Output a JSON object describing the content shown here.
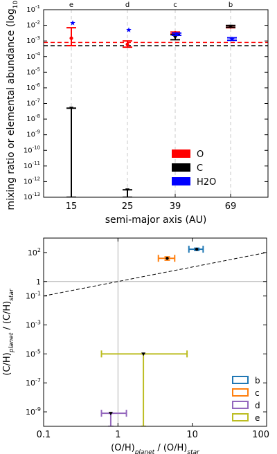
{
  "chart_data": [
    {
      "type": "scatter",
      "xlabel": "semi-major axis (AU)",
      "ylabel": "mixing ratio or elemental abundance",
      "ylabel_unit": "(log",
      "ylabel_unit_sub": "10",
      "ylabel_unit_end": ")",
      "yscale": "log",
      "ylim_exp": [
        -13,
        -1
      ],
      "categories": [
        "15",
        "25",
        "39",
        "69"
      ],
      "top_labels": [
        "e",
        "d",
        "c",
        "b"
      ],
      "y_tick_labels": [
        "10-1",
        "10-2",
        "10-3",
        "10-4",
        "10-5",
        "10-6",
        "10-7",
        "10-8",
        "10-9",
        "10-10",
        "10-11",
        "10-12",
        "10-13"
      ],
      "grid": "vertical dashed at categories",
      "legend_position": "lower-right",
      "hlines": [
        {
          "y": 0.0008,
          "color": "#ff0000",
          "style": "dashed"
        },
        {
          "y": 0.0005,
          "color": "#000000",
          "style": "dashed"
        }
      ],
      "series": [
        {
          "name": "O",
          "color": "#ff0000",
          "points": [
            {
              "x": "15",
              "y": 0.0015,
              "ylo": 0.0005,
              "yhi": 0.007
            },
            {
              "x": "25",
              "y": 0.0006,
              "ylo": 0.0004,
              "yhi": 0.001
            },
            {
              "x": "39",
              "y": 0.0033,
              "ylo": 0.0028,
              "yhi": 0.0037
            },
            {
              "x": "69",
              "y": 0.008,
              "ylo": 0.007,
              "yhi": 0.0095
            }
          ]
        },
        {
          "name": "C",
          "color": "#000000",
          "points": [
            {
              "x": "15",
              "y": 5e-08,
              "ylo": 1e-13,
              "yhi": 5e-08
            },
            {
              "x": "25",
              "y": 3e-13,
              "ylo": 1e-13,
              "yhi": 3e-13
            },
            {
              "x": "39",
              "y": 0.0017,
              "ylo": 0.0012,
              "yhi": 0.0025
            },
            {
              "x": "69",
              "y": 0.0088,
              "ylo": 0.0075,
              "yhi": 0.0098
            }
          ]
        },
        {
          "name": "H2O",
          "color": "#0000ff",
          "points": [
            {
              "x": "15",
              "y": 0.014
            },
            {
              "x": "25",
              "y": 0.005
            },
            {
              "x": "39",
              "y": 0.0027,
              "ylo": 0.0023,
              "yhi": 0.0032
            },
            {
              "x": "69",
              "y": 0.0013,
              "ylo": 0.0011,
              "yhi": 0.0016
            }
          ]
        }
      ]
    },
    {
      "type": "scatter",
      "xlabel_parts": [
        "(O/H)",
        "planet",
        " / (O/H)",
        "star"
      ],
      "ylabel_parts": [
        "(C/H)",
        "planet",
        " / (C/H)",
        "star"
      ],
      "xscale": "log",
      "yscale": "log",
      "xlim": [
        0.1,
        100
      ],
      "ylim": [
        1e-10,
        1000
      ],
      "x_tick_labels": [
        "0.1",
        "1",
        "10",
        "100"
      ],
      "y_ticks": [
        {
          "value": 100,
          "base": "10",
          "exp": "2"
        },
        {
          "value": 1,
          "base": "1",
          "exp": ""
        },
        {
          "value": 0.1,
          "base": "10",
          "exp": "-1"
        },
        {
          "value": 0.001,
          "base": "10",
          "exp": "-3"
        },
        {
          "value": 1e-05,
          "base": "10",
          "exp": "-5"
        },
        {
          "value": 1e-07,
          "base": "10",
          "exp": "-7"
        },
        {
          "value": 1e-09,
          "base": "10",
          "exp": "-9"
        }
      ],
      "reference_lines": [
        {
          "kind": "vertical",
          "x": 1,
          "color": "#b0b0b0"
        },
        {
          "kind": "horizontal",
          "y": 1,
          "color": "#b0b0b0"
        },
        {
          "kind": "one_to_one",
          "color": "#000000",
          "style": "dashed"
        }
      ],
      "legend_position": "lower-right",
      "series": [
        {
          "name": "b",
          "color": "#1f77b4",
          "x": 11.5,
          "xlo": 9.0,
          "xhi": 14.0,
          "y": 170,
          "ylo": 140,
          "yhi": 200
        },
        {
          "name": "c",
          "color": "#ff7f0e",
          "x": 4.6,
          "xlo": 3.5,
          "xhi": 5.8,
          "y": 40,
          "ylo": 30,
          "yhi": 50
        },
        {
          "name": "d",
          "color": "#9467bd",
          "x": 0.8,
          "xlo": 0.6,
          "xhi": 1.3,
          "y": 8e-10,
          "ylo": 1e-10,
          "yhi": 8e-10
        },
        {
          "name": "e",
          "color": "#bcbd22",
          "x": 2.2,
          "xlo": 0.6,
          "xhi": 8.5,
          "y": 1e-05,
          "ylo": 1e-10,
          "yhi": 1e-05
        }
      ]
    }
  ]
}
